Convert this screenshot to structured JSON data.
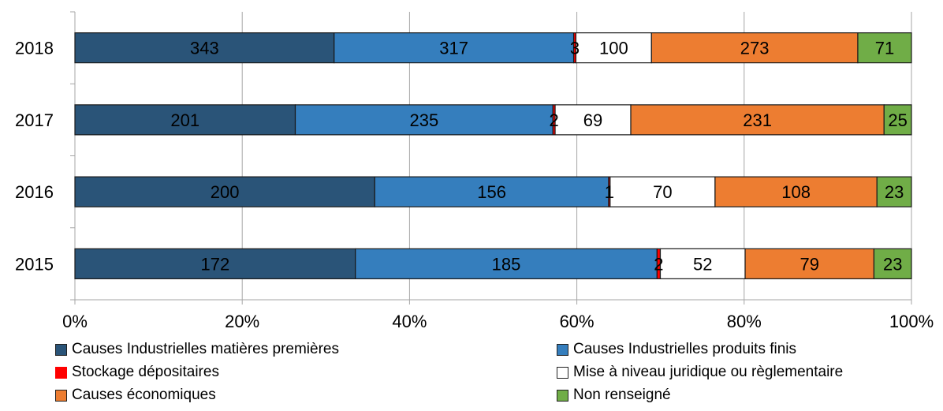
{
  "chart_data": {
    "type": "bar",
    "orientation": "horizontal",
    "stacked": "percent",
    "categories": [
      "2018",
      "2017",
      "2016",
      "2015"
    ],
    "x_ticks": [
      "0%",
      "20%",
      "40%",
      "60%",
      "80%",
      "100%"
    ],
    "xlim": [
      0,
      100
    ],
    "grid": "vertical",
    "legend_position": "bottom",
    "series": [
      {
        "name": "Causes Industrielles matières premières",
        "color": "#2a5478",
        "label_color": "#000000",
        "values": [
          343,
          201,
          200,
          172
        ]
      },
      {
        "name": "Causes Industrielles produits finis",
        "color": "#357ebd",
        "label_color": "#000000",
        "values": [
          317,
          235,
          156,
          185
        ]
      },
      {
        "name": "Stockage dépositaires",
        "color": "#ff0000",
        "label_color": "#000000",
        "values": [
          3,
          2,
          1,
          2
        ]
      },
      {
        "name": "Mise à niveau juridique ou règlementaire",
        "color": "#ffffff",
        "label_color": "#000000",
        "values": [
          100,
          69,
          70,
          52
        ]
      },
      {
        "name": "Causes économiques",
        "color": "#ed7d31",
        "label_color": "#000000",
        "values": [
          273,
          231,
          108,
          79
        ]
      },
      {
        "name": "Non renseigné",
        "color": "#70ad47",
        "label_color": "#000000",
        "values": [
          71,
          25,
          23,
          23
        ]
      }
    ]
  }
}
